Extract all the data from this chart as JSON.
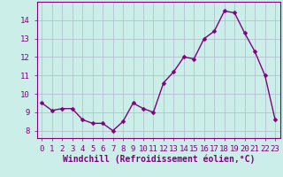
{
  "x": [
    0,
    1,
    2,
    3,
    4,
    5,
    6,
    7,
    8,
    9,
    10,
    11,
    12,
    13,
    14,
    15,
    16,
    17,
    18,
    19,
    20,
    21,
    22,
    23
  ],
  "y": [
    9.5,
    9.1,
    9.2,
    9.2,
    8.6,
    8.4,
    8.4,
    8.0,
    8.5,
    9.5,
    9.2,
    9.0,
    10.6,
    11.2,
    12.0,
    11.9,
    13.0,
    13.4,
    14.5,
    14.4,
    13.3,
    12.3,
    11.0,
    8.6
  ],
  "line_color": "#800080",
  "marker": "D",
  "marker_size": 2.5,
  "linewidth": 1.0,
  "bg_color": "#cceee8",
  "grid_color": "#b0b8cc",
  "xlabel": "Windchill (Refroidissement éolien,°C)",
  "xlabel_fontsize": 7,
  "tick_fontsize": 6.5,
  "ytick_labels": [
    "8",
    "9",
    "10",
    "11",
    "12",
    "13",
    "14"
  ],
  "ytick_values": [
    8,
    9,
    10,
    11,
    12,
    13,
    14
  ],
  "ylim": [
    7.6,
    15.0
  ],
  "xlim": [
    -0.5,
    23.5
  ],
  "xtick_values": [
    0,
    1,
    2,
    3,
    4,
    5,
    6,
    7,
    8,
    9,
    10,
    11,
    12,
    13,
    14,
    15,
    16,
    17,
    18,
    19,
    20,
    21,
    22,
    23
  ]
}
